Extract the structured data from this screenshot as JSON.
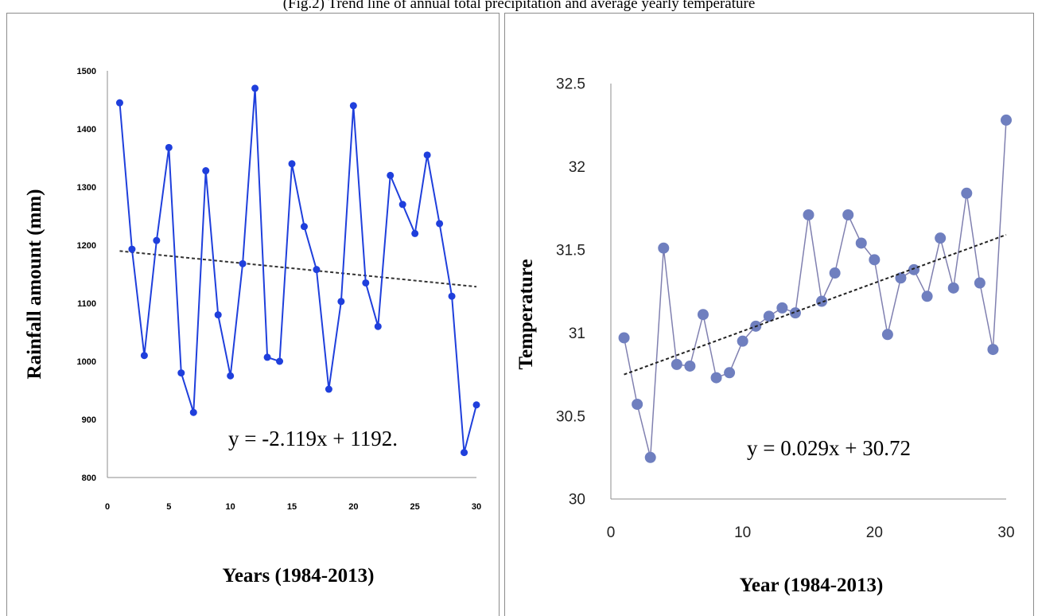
{
  "caption": "(Fig.2) Trend line of annual total precipitation and average yearly temperature",
  "chart_data": [
    {
      "type": "line",
      "xlabel": "Years (1984-2013)",
      "ylabel": "Rainfall amount (mm)",
      "xlim": [
        0,
        30
      ],
      "ylim": [
        800,
        1500
      ],
      "xticks": [
        "0",
        "5",
        "10",
        "15",
        "20",
        "25",
        "30"
      ],
      "yticks": [
        "800",
        "900",
        "1000",
        "1100",
        "1200",
        "1300",
        "1400",
        "1500"
      ],
      "grid": false,
      "line_color": "#1f3fdc",
      "trend_color": "#333333",
      "x": [
        1,
        2,
        3,
        4,
        5,
        6,
        7,
        8,
        9,
        10,
        11,
        12,
        13,
        14,
        15,
        16,
        17,
        18,
        19,
        20,
        21,
        22,
        23,
        24,
        25,
        26,
        27,
        28,
        29,
        30
      ],
      "values": [
        1445,
        1193,
        1010,
        1208,
        1368,
        980,
        912,
        1328,
        1080,
        975,
        1168,
        1470,
        1007,
        1000,
        1340,
        1232,
        1158,
        952,
        1103,
        1440,
        1135,
        1060,
        1320,
        1270,
        1220,
        1355,
        1237,
        1112,
        843,
        925
      ],
      "trendline": {
        "slope": -2.119,
        "intercept": 1192,
        "equation": "y = -2.119x + 1192."
      }
    },
    {
      "type": "scatter",
      "xlabel": "Year (1984-2013)",
      "ylabel": "Temperature",
      "xlim": [
        0,
        30
      ],
      "ylim": [
        30,
        32.5
      ],
      "xticks": [
        "0",
        "10",
        "20",
        "30"
      ],
      "yticks": [
        "30",
        "30.5",
        "31",
        "31.5",
        "32",
        "32.5"
      ],
      "grid": false,
      "line_color": "#8080b0",
      "marker_color": "#6f7fbf",
      "trend_color": "#222222",
      "x": [
        1,
        2,
        3,
        4,
        5,
        6,
        7,
        8,
        9,
        10,
        11,
        12,
        13,
        14,
        15,
        16,
        17,
        18,
        19,
        20,
        21,
        22,
        23,
        24,
        25,
        26,
        27,
        28,
        29,
        30
      ],
      "values": [
        30.97,
        30.57,
        30.25,
        31.51,
        30.81,
        30.8,
        31.11,
        30.73,
        30.76,
        30.95,
        31.04,
        31.1,
        31.15,
        31.12,
        31.71,
        31.19,
        31.36,
        31.71,
        31.54,
        31.44,
        30.99,
        31.33,
        31.38,
        31.22,
        31.57,
        31.27,
        31.84,
        31.3,
        30.9,
        32.28
      ],
      "trendline": {
        "slope": 0.029,
        "intercept": 30.72,
        "equation": "y = 0.029x + 30.72"
      }
    }
  ]
}
